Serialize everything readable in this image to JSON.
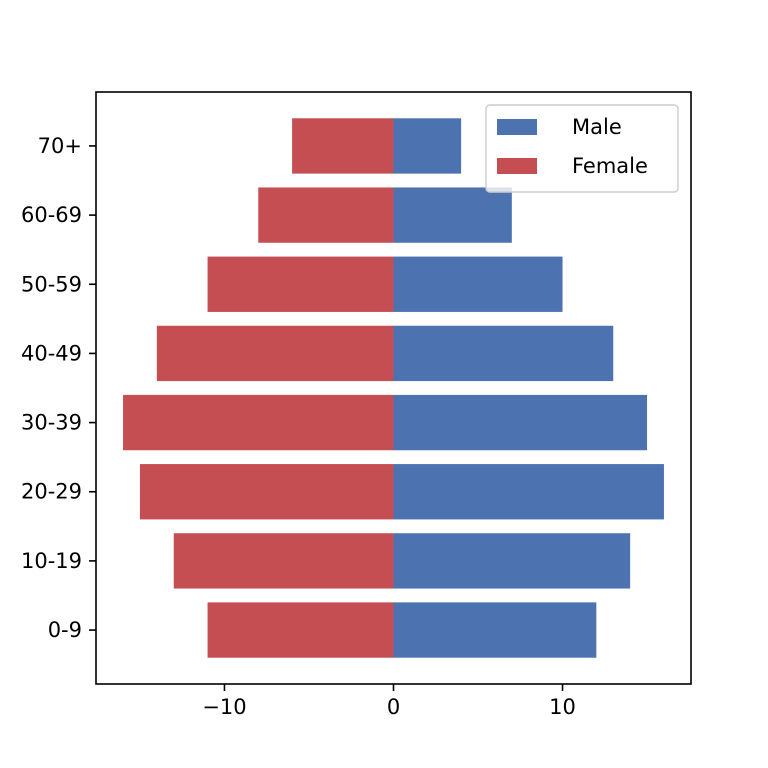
{
  "chart_data": {
    "type": "bar",
    "orientation": "horizontal",
    "categories": [
      "0-9",
      "10-19",
      "20-29",
      "30-39",
      "40-49",
      "50-59",
      "60-69",
      "70+"
    ],
    "series": [
      {
        "name": "Male",
        "values": [
          12,
          14,
          16,
          15,
          13,
          10,
          7,
          4
        ],
        "color": "#4c72b0"
      },
      {
        "name": "Female",
        "values": [
          -11,
          -13,
          -15,
          -16,
          -14,
          -11,
          -8,
          -6
        ],
        "color": "#c44e52"
      }
    ],
    "xlim": [
      -17.6,
      17.6
    ],
    "xticks": [
      -10,
      0,
      10
    ],
    "xtick_labels": [
      "−10",
      "0",
      "10"
    ],
    "title": "",
    "xlabel": "",
    "ylabel": "",
    "grid": false,
    "legend": {
      "position": "top-right",
      "entries": [
        "Male",
        "Female"
      ]
    }
  }
}
